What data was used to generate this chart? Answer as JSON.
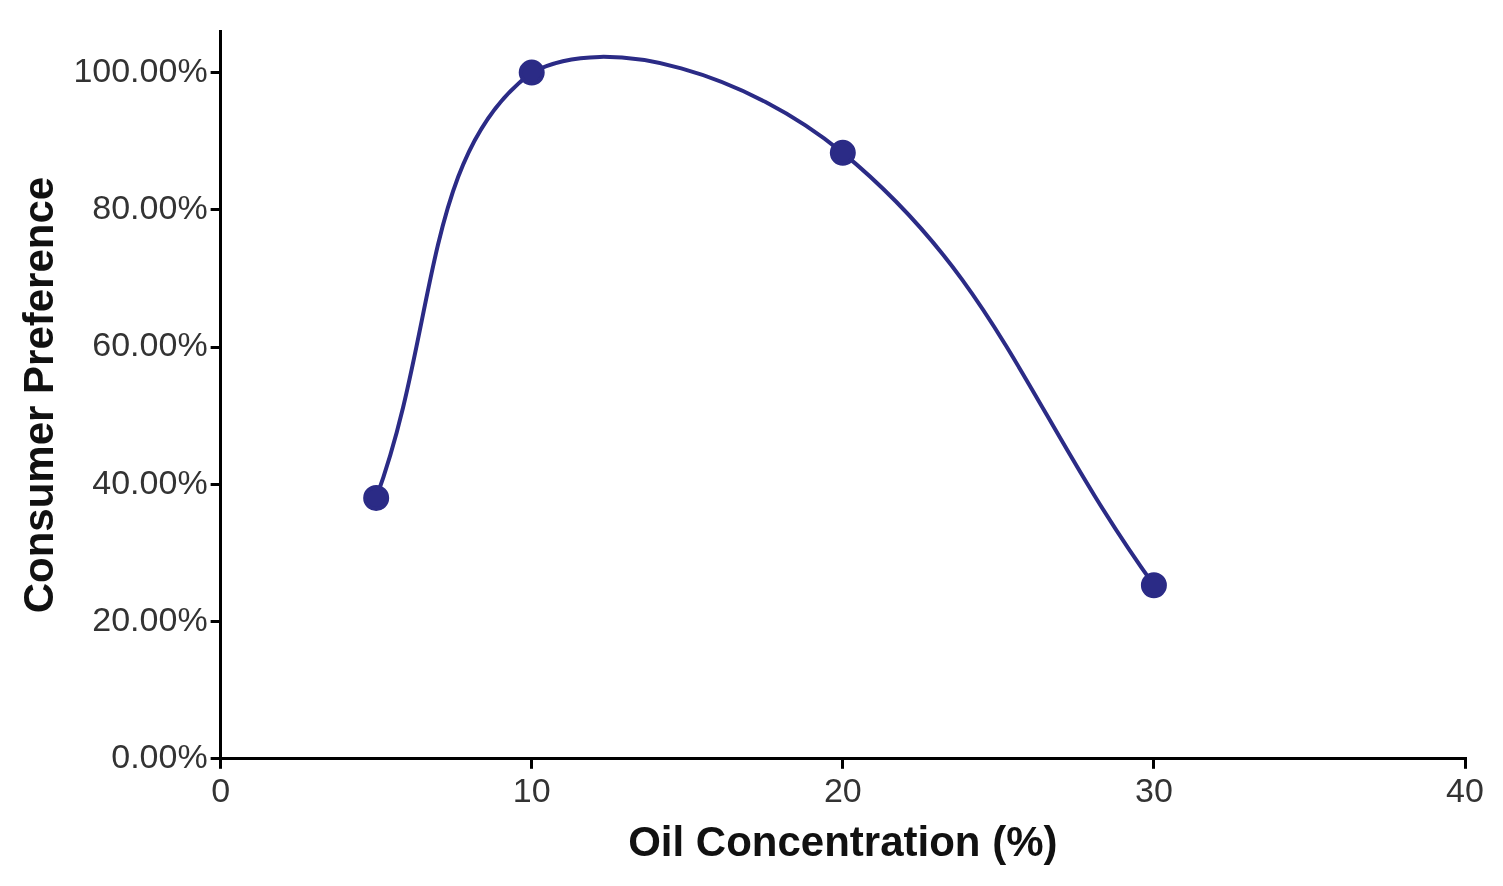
{
  "chart_data": {
    "type": "line",
    "xlabel": "Oil Concentration (%)",
    "ylabel": "Consumer Preference",
    "x": [
      5,
      10,
      20,
      30
    ],
    "series": [
      {
        "color": "#2b2b86",
        "values": [
          38,
          100,
          88.3,
          25.3
        ]
      }
    ],
    "xlim": [
      0,
      40
    ],
    "xticks": [
      0,
      10,
      20,
      30,
      40
    ],
    "ylim": [
      0,
      106
    ],
    "yticks": [
      {
        "value": 0,
        "label": "0.00%"
      },
      {
        "value": 20,
        "label": "20.00%"
      },
      {
        "value": 40,
        "label": "40.00%"
      },
      {
        "value": 60,
        "label": "60.00%"
      },
      {
        "value": 80,
        "label": "80.00%"
      },
      {
        "value": 100,
        "label": "100.00%"
      }
    ],
    "grid": false,
    "legend": false,
    "marker": "circle",
    "line_style": "solid"
  }
}
